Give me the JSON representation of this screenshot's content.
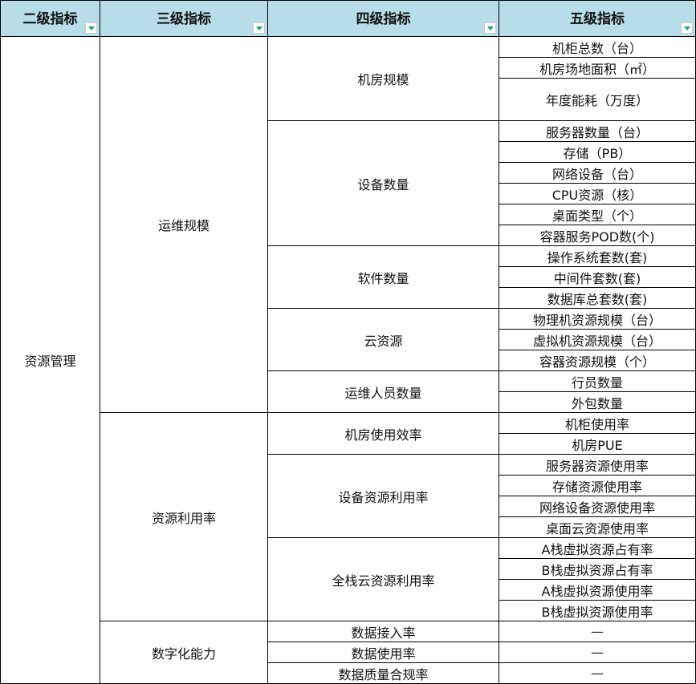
{
  "headers": [
    "二级指标",
    "三级指标",
    "四级指标",
    "五级指标"
  ],
  "header_bg": "#b7dde8",
  "filter_icon_color": "#1aa56a",
  "sections": [
    {
      "level2": "资源管理",
      "level3": [
        {
          "label": "运维规模",
          "level4": [
            {
              "label": "机房规模",
              "level5": [
                "机柜总数（台）",
                "机房场地面积（㎡）",
                "年度能耗（万度）"
              ]
            },
            {
              "label": "设备数量",
              "level5": [
                "服务器数量（台）",
                "存储（PB）",
                "网络设备（台）",
                "CPU资源（核）",
                "桌面类型（个）",
                "容器服务POD数(个)"
              ]
            },
            {
              "label": "软件数量",
              "level5": [
                "操作系统套数(套)",
                "中间件套数(套)",
                "数据库总套数(套)"
              ]
            },
            {
              "label": "云资源",
              "level5": [
                "物理机资源规模（台）",
                "虚拟机资源规模（台）",
                "容器资源规模（个）"
              ]
            },
            {
              "label": "运维人员数量",
              "level5": [
                "行员数量",
                "外包数量"
              ]
            }
          ]
        },
        {
          "label": "资源利用率",
          "level4": [
            {
              "label": "机房使用效率",
              "level5": [
                "机柜使用率",
                "机房PUE"
              ]
            },
            {
              "label": "设备资源利用率",
              "level5": [
                "服务器资源使用率",
                "存储资源使用率",
                "网络设备资源使用率",
                "桌面云资源使用率"
              ]
            },
            {
              "label": "全栈云资源利用率",
              "level5": [
                "A栈虚拟资源占有率",
                "B栈虚拟资源占有率",
                "A栈虚拟资源使用率",
                "B栈虚拟资源使用率"
              ]
            }
          ]
        },
        {
          "label": "数字化能力",
          "level4": [
            {
              "label": "数据接入率",
              "level5": [
                "—"
              ]
            },
            {
              "label": "数据使用率",
              "level5": [
                "—"
              ]
            },
            {
              "label": "数据质量合规率",
              "level5": [
                "—"
              ]
            }
          ]
        }
      ]
    }
  ]
}
